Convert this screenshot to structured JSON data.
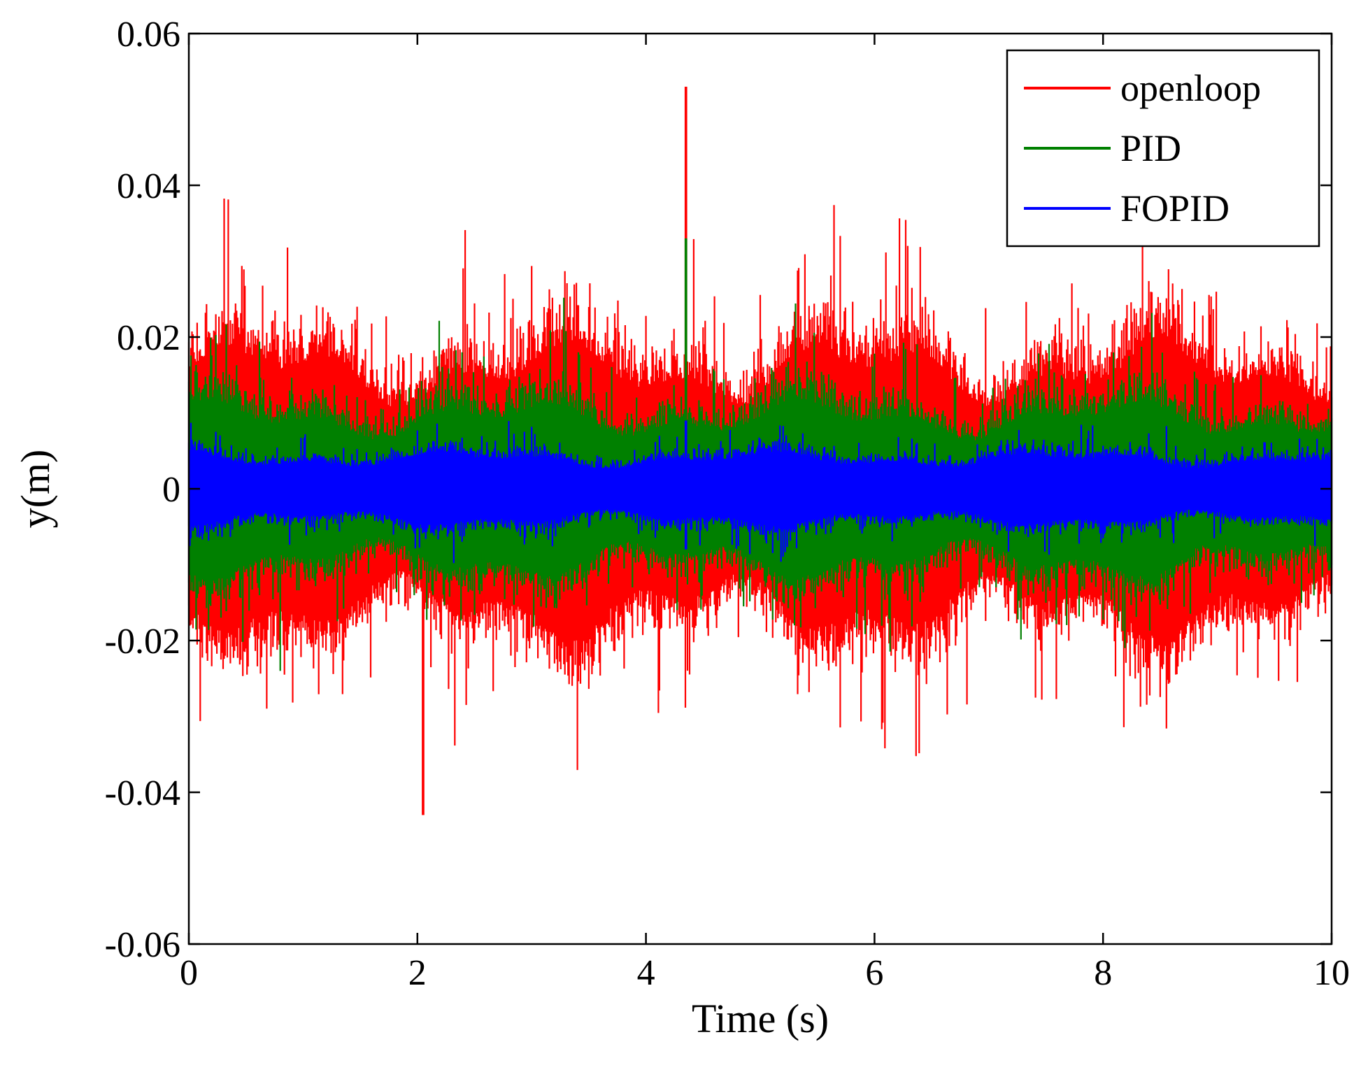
{
  "chart_data": {
    "type": "line",
    "title": "",
    "xlabel": "Time (s)",
    "ylabel": "y(m)",
    "xlim": [
      0,
      10
    ],
    "ylim": [
      -0.06,
      0.06
    ],
    "x_ticks": [
      0,
      2,
      4,
      6,
      8,
      10
    ],
    "y_ticks": [
      -0.06,
      -0.04,
      -0.02,
      0,
      0.02,
      0.04,
      0.06
    ],
    "x_tick_labels": [
      "0",
      "2",
      "4",
      "6",
      "8",
      "10"
    ],
    "y_tick_labels": [
      "-0.06",
      "-0.04",
      "-0.02",
      "0",
      "0.02",
      "0.04",
      "0.06"
    ],
    "grid": false,
    "legend_position": "top-right",
    "series": [
      {
        "name": "openloop",
        "color": "#ff0000",
        "description_values": {
          "typical_band": [
            -0.02,
            0.02
          ],
          "max_peak": {
            "x": 4.35,
            "y": 0.053
          },
          "min_peak": {
            "x": 2.05,
            "y": -0.043
          }
        }
      },
      {
        "name": "PID",
        "color": "#008000",
        "description_values": {
          "typical_band": [
            -0.012,
            0.012
          ],
          "max_peak": {
            "x": 4.35,
            "y": 0.033
          },
          "min_peak": {
            "x": 0.8,
            "y": -0.024
          }
        }
      },
      {
        "name": "FOPID",
        "color": "#0000ff",
        "description_values": {
          "typical_band": [
            -0.005,
            0.005
          ],
          "max_peak": {
            "x": 4.35,
            "y": 0.009
          },
          "min_peak": {
            "x": 4.35,
            "y": -0.008
          }
        }
      }
    ]
  }
}
